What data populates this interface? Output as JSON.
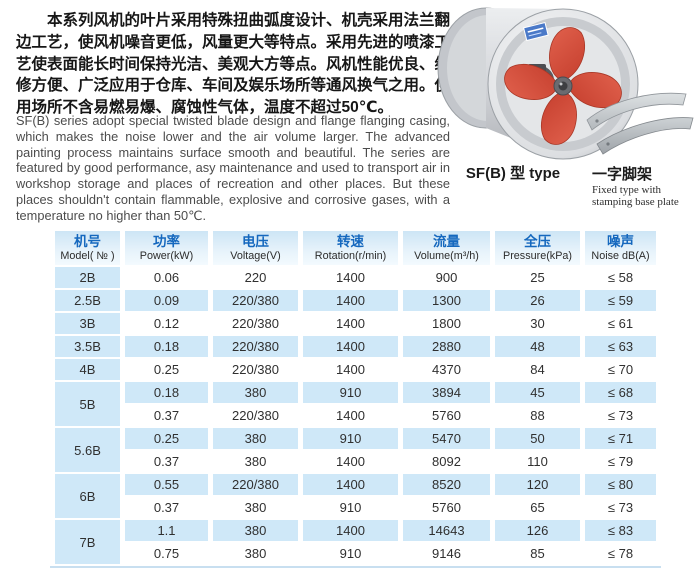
{
  "intro": {
    "cn": "本系列风机的叶片采用特殊扭曲弧度设计、机壳采用法兰翻边工艺，使风机噪音更低，风量更大等特点。采用先进的喷漆工艺使表面能长时间保持光洁、美观大方等点。风机性能优良、维修方便、广泛应用于仓库、车间及娱乐场所等通风换气之用。使用场所不含易燃易爆、腐蚀性气体，温度不超过50℃。",
    "en": "SF(B) series adopt special twisted blade design and flange flanging casing, which makes the noise lower and the air volume larger. The advanced painting process maintains surface smooth and beautiful. The series are featured by good performance, asy maintenance and used to transport air in workshop storage and places of recreation and other places. But these places shouldn't contain flammable, explosive and corrosive gases, with a temperature no higher than 50℃."
  },
  "figures": {
    "fan_label": "SF(B) 型 type",
    "bracket_label_cn": "一字脚架",
    "bracket_caption_line1": "Fixed type with",
    "bracket_caption_line2": "stamping base plate"
  },
  "table": {
    "headers": [
      {
        "cn": "机号",
        "en": "Model( № )"
      },
      {
        "cn": "功率",
        "en": "Power(kW)"
      },
      {
        "cn": "电压",
        "en": "Voltage(V)"
      },
      {
        "cn": "转速",
        "en": "Rotation(r/min)"
      },
      {
        "cn": "流量",
        "en": "Volume(m³/h)"
      },
      {
        "cn": "全压",
        "en": "Pressure(kPa)"
      },
      {
        "cn": "噪声",
        "en": "Noise dB(A)"
      }
    ],
    "groups": [
      {
        "model": "2B",
        "rows": [
          [
            "0.06",
            "220",
            "1400",
            "900",
            "25",
            "≤ 58"
          ]
        ]
      },
      {
        "model": "2.5B",
        "rows": [
          [
            "0.09",
            "220/380",
            "1400",
            "1300",
            "26",
            "≤ 59"
          ]
        ]
      },
      {
        "model": "3B",
        "rows": [
          [
            "0.12",
            "220/380",
            "1400",
            "1800",
            "30",
            "≤ 61"
          ]
        ]
      },
      {
        "model": "3.5B",
        "rows": [
          [
            "0.18",
            "220/380",
            "1400",
            "2880",
            "48",
            "≤ 63"
          ]
        ]
      },
      {
        "model": "4B",
        "rows": [
          [
            "0.25",
            "220/380",
            "1400",
            "4370",
            "84",
            "≤ 70"
          ]
        ]
      },
      {
        "model": "5B",
        "rows": [
          [
            "0.18",
            "380",
            "910",
            "3894",
            "45",
            "≤ 68"
          ],
          [
            "0.37",
            "220/380",
            "1400",
            "5760",
            "88",
            "≤ 73"
          ]
        ]
      },
      {
        "model": "5.6B",
        "rows": [
          [
            "0.25",
            "380",
            "910",
            "5470",
            "50",
            "≤ 71"
          ],
          [
            "0.37",
            "380",
            "1400",
            "8092",
            "110",
            "≤ 79"
          ]
        ]
      },
      {
        "model": "6B",
        "rows": [
          [
            "0.55",
            "220/380",
            "1400",
            "8520",
            "120",
            "≤ 80"
          ],
          [
            "0.37",
            "380",
            "910",
            "5760",
            "65",
            "≤ 73"
          ]
        ]
      },
      {
        "model": "7B",
        "rows": [
          [
            "1.1",
            "380",
            "1400",
            "14643",
            "126",
            "≤ 83"
          ],
          [
            "0.75",
            "380",
            "910",
            "9146",
            "85",
            "≤ 78"
          ]
        ]
      }
    ]
  },
  "colors": {
    "header_text_blue": "#1568be",
    "row_alt_blue": "#cfe8f8",
    "blade_red": "#d8503f",
    "casing_silver": "#d9dbde"
  }
}
